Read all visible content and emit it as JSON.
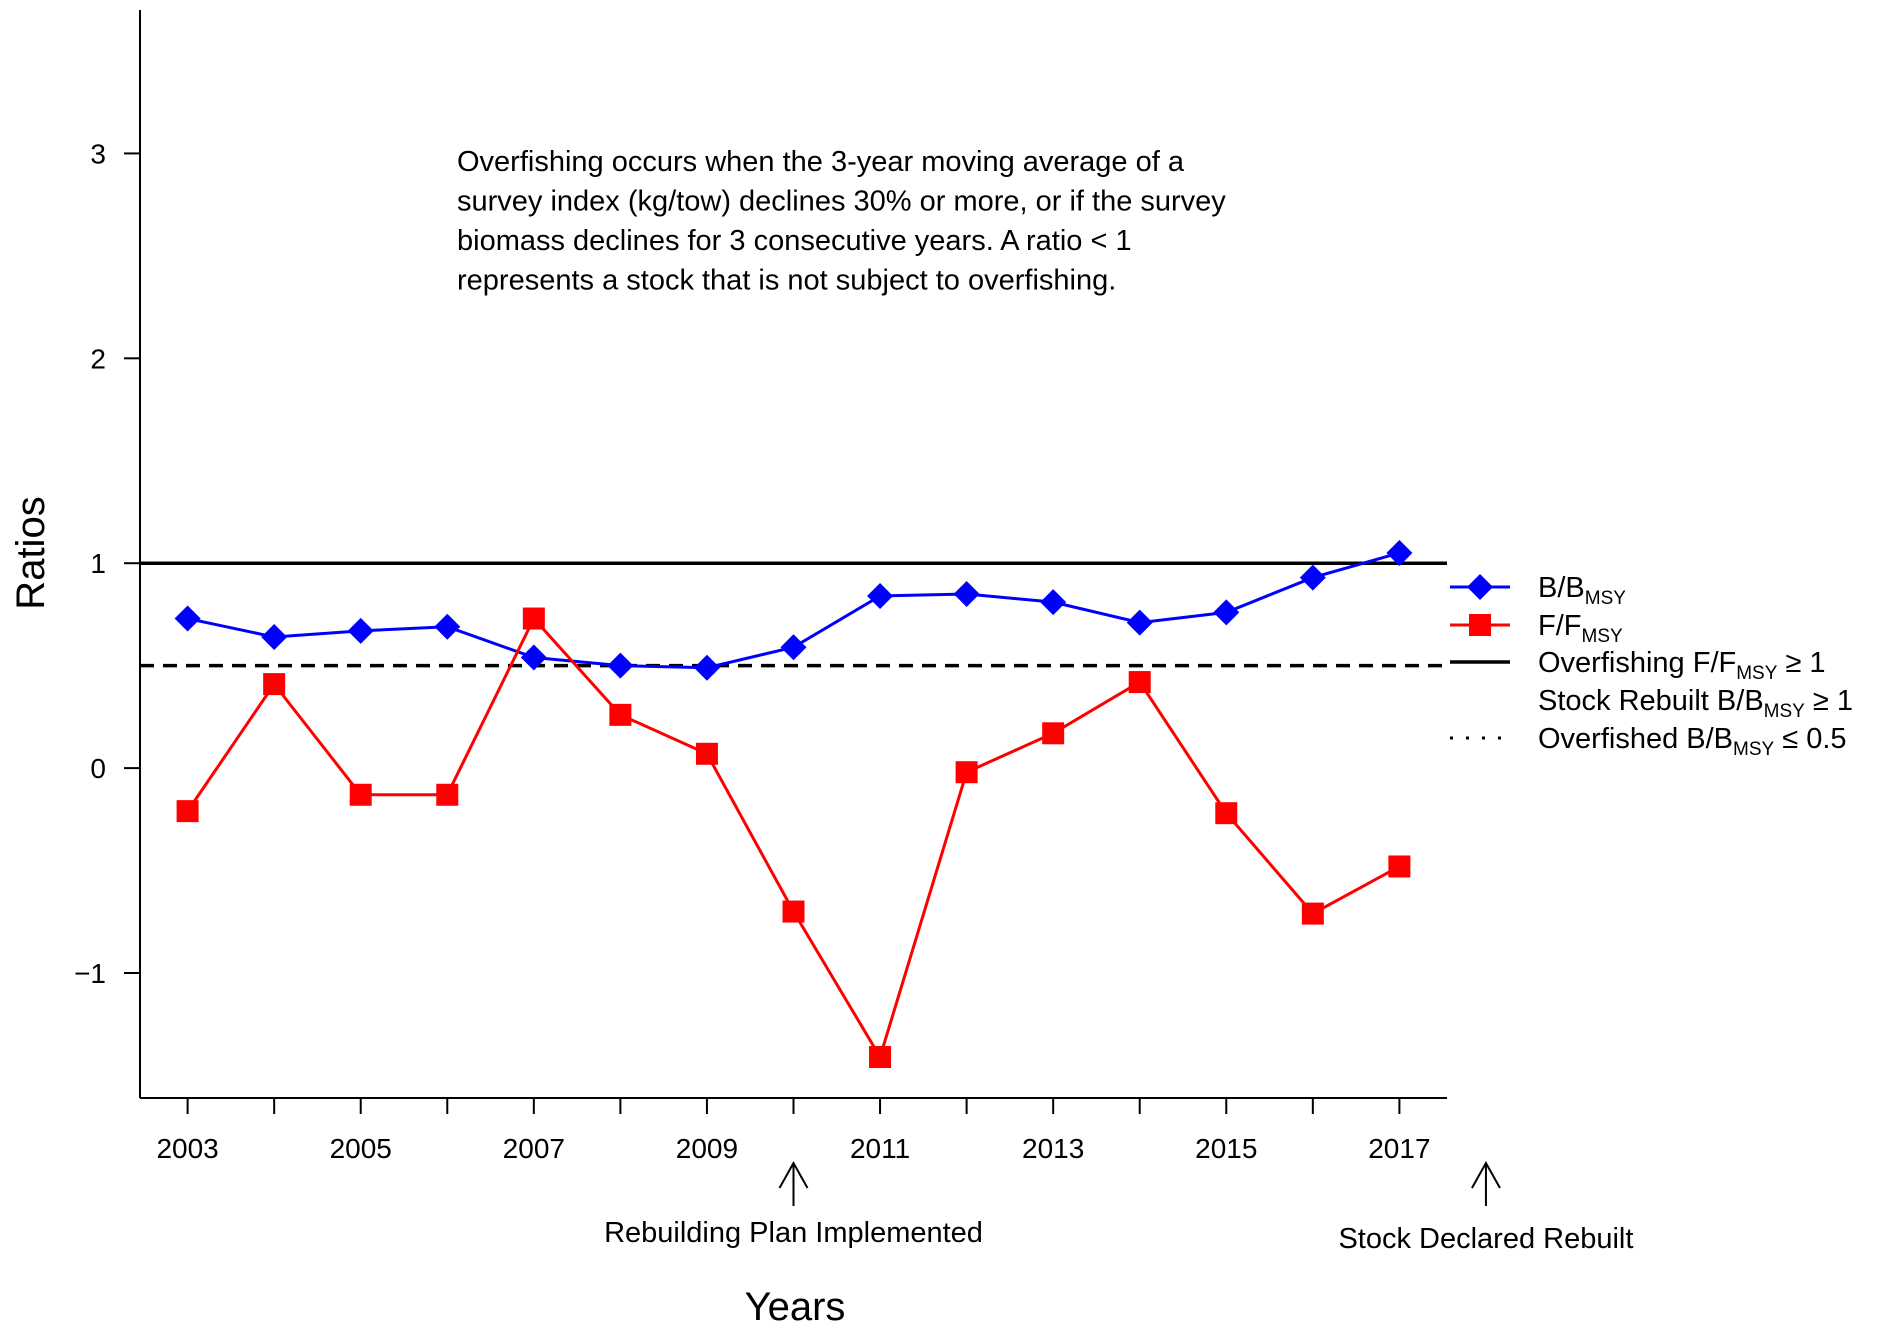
{
  "chart_data": {
    "type": "line",
    "xlabel": "Years",
    "ylabel": "Ratios",
    "xlim": [
      2002.45,
      2017.55
    ],
    "ylim": [
      -1.61,
      3.7
    ],
    "x_ticks": [
      2003,
      2004,
      2005,
      2006,
      2007,
      2008,
      2009,
      2010,
      2011,
      2012,
      2013,
      2014,
      2015,
      2016,
      2017
    ],
    "x_tick_labels": [
      "2003",
      "",
      "2005",
      "",
      "2007",
      "",
      "2009",
      "",
      "2011",
      "",
      "2013",
      "",
      "2015",
      "",
      "2017"
    ],
    "y_ticks": [
      -1,
      0,
      1,
      2,
      3
    ],
    "y_tick_labels": [
      "−1",
      "0",
      "1",
      "2",
      "3"
    ],
    "x": [
      2003,
      2004,
      2005,
      2006,
      2007,
      2008,
      2009,
      2010,
      2011,
      2012,
      2013,
      2014,
      2015,
      2016,
      2017
    ],
    "series": [
      {
        "name": "B/BMSY",
        "legend_main": "B/B",
        "legend_sub": "MSY",
        "color": "#0000ff",
        "marker": "diamond",
        "values": [
          0.73,
          0.64,
          0.67,
          0.69,
          0.54,
          0.5,
          0.49,
          0.59,
          0.84,
          0.85,
          0.81,
          0.71,
          0.76,
          0.93,
          1.05
        ]
      },
      {
        "name": "F/FMSY",
        "legend_main": "F/F",
        "legend_sub": "MSY",
        "color": "#ff0000",
        "marker": "square",
        "values": [
          -0.21,
          0.41,
          -0.13,
          -0.13,
          0.73,
          0.26,
          0.07,
          -0.7,
          -1.41,
          -0.02,
          0.17,
          0.42,
          -0.22,
          -0.71,
          -0.48
        ]
      }
    ],
    "reference_lines": [
      {
        "y": 1.0,
        "style": "solid"
      },
      {
        "y": 0.5,
        "style": "dashed"
      }
    ],
    "legend_placement": "right",
    "legend_extra": [
      {
        "style": "solid",
        "prefix": "Overfishing F/F",
        "sub": "MSY",
        "suffix": " ≥ 1"
      },
      {
        "style": "none",
        "prefix": "Stock Rebuilt B/B",
        "sub": "MSY",
        "suffix": " ≥ 1"
      },
      {
        "style": "dotted",
        "prefix": "Overfished B/B",
        "sub": "MSY",
        "suffix": " ≤ 0.5"
      }
    ],
    "annotation_lines": [
      "Overfishing occurs when the 3-year moving average of a",
      "survey index (kg/tow) declines 30% or more, or if the survey",
      "biomass declines for 3 consecutive years.  A ratio < 1",
      "represents a stock that is not subject to overfishing."
    ],
    "event_markers": [
      {
        "x": 2010,
        "label": "Rebuilding Plan Implemented"
      },
      {
        "x": 2018,
        "label": "Stock Declared Rebuilt"
      }
    ],
    "grid": false
  }
}
